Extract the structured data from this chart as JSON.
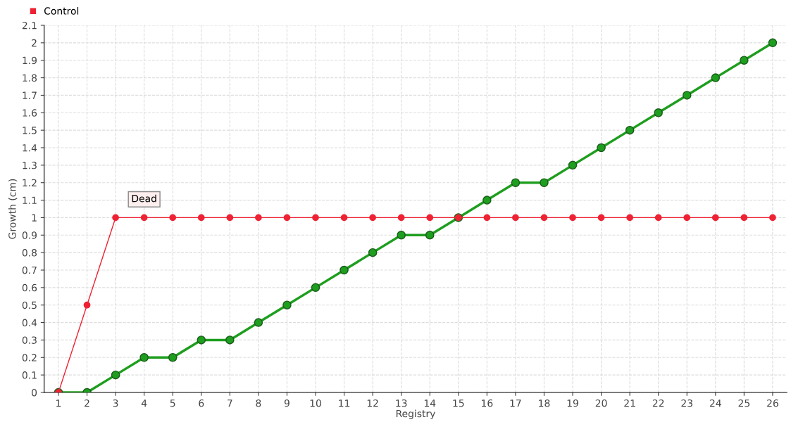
{
  "chart_data": {
    "type": "line",
    "xlabel": "Registry",
    "ylabel": "Growth (cm)",
    "categories": [
      "1",
      "2",
      "3",
      "4",
      "5",
      "6",
      "7",
      "8",
      "9",
      "10",
      "11",
      "12",
      "13",
      "14",
      "15",
      "16",
      "17",
      "18",
      "19",
      "20",
      "21",
      "22",
      "23",
      "24",
      "25",
      "26"
    ],
    "series": [
      {
        "color": "#1e9e1e",
        "values": [
          0,
          0,
          0.1,
          0.2,
          0.2,
          0.3,
          0.3,
          0.4,
          0.5,
          0.6,
          0.7,
          0.8,
          0.9,
          0.9,
          1.0,
          1.1,
          1.2,
          1.2,
          1.3,
          1.4,
          1.5,
          1.6,
          1.7,
          1.8,
          1.9,
          2.0
        ]
      },
      {
        "name": "Control",
        "color": "#ee2233",
        "values": [
          0,
          0.5,
          1,
          1,
          1,
          1,
          1,
          1,
          1,
          1,
          1,
          1,
          1,
          1,
          1,
          1,
          1,
          1,
          1,
          1,
          1,
          1,
          1,
          1,
          1,
          1
        ]
      }
    ],
    "ylim": [
      0,
      2.1
    ],
    "yticks": [
      0,
      0.1,
      0.2,
      0.3,
      0.4,
      0.5,
      0.6,
      0.7,
      0.8,
      0.9,
      1,
      1.1,
      1.2,
      1.3,
      1.4,
      1.5,
      1.6,
      1.7,
      1.8,
      1.9,
      2,
      2.1
    ],
    "annotations": [
      {
        "text": "Dead",
        "x": "4",
        "y": 1
      }
    ],
    "grid": true,
    "legend": "top left",
    "marker": "circle",
    "line_style": "solid"
  }
}
